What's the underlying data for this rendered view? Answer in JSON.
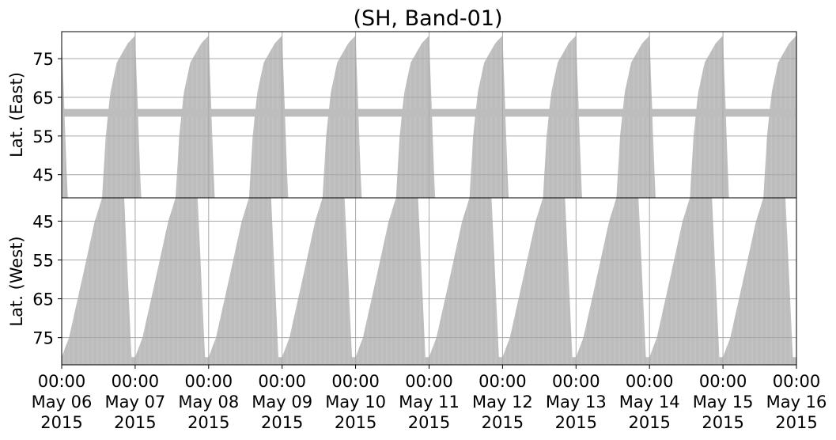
{
  "chart_data": [
    {
      "type": "area",
      "panel": "east",
      "title": "(SH, Band-01)",
      "ylabel": "Lat. (East)",
      "ylim": [
        82,
        39
      ],
      "yticks": [
        45,
        55,
        65,
        75
      ],
      "y_inverted": true,
      "grid": true,
      "fill_color": "#bdbdbd",
      "constant_band": {
        "from": 60,
        "to": 62
      },
      "series": [
        {
          "description": "latitude coverage pattern per day (start day, coverage boundary increases over the day)",
          "day_profile": [
            {
              "day_fraction": 0.0,
              "lat": 81
            },
            {
              "day_fraction": 0.08,
              "lat": 39
            },
            {
              "day_fraction": 0.55,
              "lat": 39
            },
            {
              "day_fraction": 0.6,
              "lat": 55
            },
            {
              "day_fraction": 0.66,
              "lat": 66
            },
            {
              "day_fraction": 0.75,
              "lat": 74
            },
            {
              "day_fraction": 0.9,
              "lat": 79
            },
            {
              "day_fraction": 1.0,
              "lat": 81
            }
          ]
        }
      ]
    },
    {
      "type": "area",
      "panel": "west",
      "title": "",
      "ylabel": "Lat. (West)",
      "ylim": [
        39,
        82
      ],
      "yticks": [
        45,
        55,
        65,
        75
      ],
      "y_inverted": false,
      "grid": true,
      "fill_color": "#bdbdbd",
      "series": [
        {
          "description": "latitude coverage pattern per day",
          "day_profile": [
            {
              "day_fraction": 0.0,
              "lat": 80
            },
            {
              "day_fraction": 0.1,
              "lat": 75
            },
            {
              "day_fraction": 0.3,
              "lat": 58
            },
            {
              "day_fraction": 0.45,
              "lat": 45
            },
            {
              "day_fraction": 0.55,
              "lat": 39
            },
            {
              "day_fraction": 0.85,
              "lat": 39
            },
            {
              "day_fraction": 0.95,
              "lat": 80
            },
            {
              "day_fraction": 1.0,
              "lat": 80
            }
          ]
        }
      ]
    }
  ],
  "x_axis": {
    "start": "2015-05-06 00:00",
    "end": "2015-05-16 00:00",
    "ticks": [
      {
        "time": "00:00",
        "date": "May 06",
        "year": "2015"
      },
      {
        "time": "00:00",
        "date": "May 07",
        "year": "2015"
      },
      {
        "time": "00:00",
        "date": "May 08",
        "year": "2015"
      },
      {
        "time": "00:00",
        "date": "May 09",
        "year": "2015"
      },
      {
        "time": "00:00",
        "date": "May 10",
        "year": "2015"
      },
      {
        "time": "00:00",
        "date": "May 11",
        "year": "2015"
      },
      {
        "time": "00:00",
        "date": "May 12",
        "year": "2015"
      },
      {
        "time": "00:00",
        "date": "May 13",
        "year": "2015"
      },
      {
        "time": "00:00",
        "date": "May 14",
        "year": "2015"
      },
      {
        "time": "00:00",
        "date": "May 15",
        "year": "2015"
      },
      {
        "time": "00:00",
        "date": "May 16",
        "year": "2015"
      }
    ]
  }
}
